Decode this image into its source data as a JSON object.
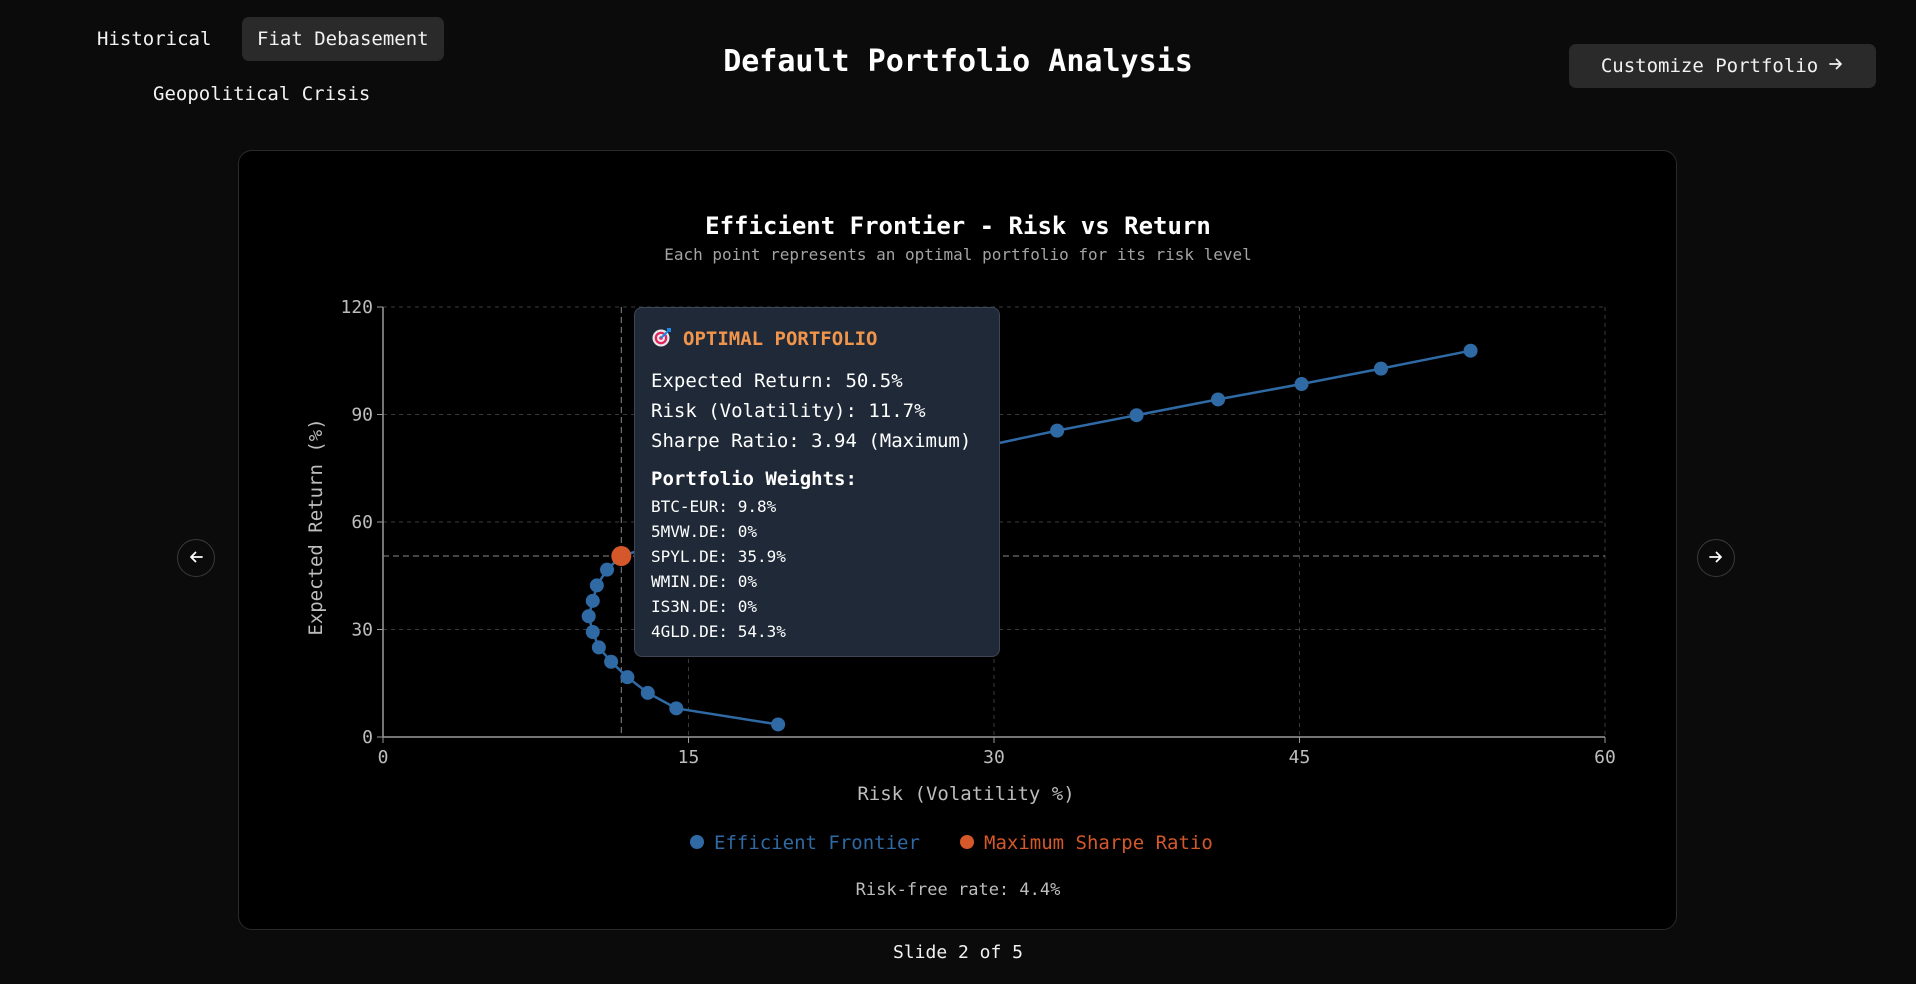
{
  "tabs": [
    {
      "label": "Historical",
      "active": false
    },
    {
      "label": "Fiat Debasement",
      "active": true
    },
    {
      "label": "Geopolitical Crisis",
      "active": false
    }
  ],
  "page_title": "Default Portfolio Analysis",
  "customize_button": {
    "label": "Customize Portfolio",
    "icon": "arrow-right-icon"
  },
  "nav": {
    "prev_icon": "arrow-left-icon",
    "next_icon": "arrow-right-icon"
  },
  "chart_data": {
    "type": "scatter",
    "title": "Efficient Frontier - Risk vs Return",
    "subtitle": "Each point represents an optimal portfolio for its risk level",
    "xlabel": "Risk (Volatility %)",
    "ylabel": "Expected Return (%)",
    "xlim": [
      0,
      60
    ],
    "ylim": [
      0,
      120
    ],
    "xticks": [
      0,
      15,
      30,
      45,
      60
    ],
    "yticks": [
      0,
      30,
      60,
      90,
      120
    ],
    "grid": true,
    "legend_position": "bottom-center",
    "series": [
      {
        "name": "Efficient Frontier",
        "color": "#2f6aa5",
        "points": [
          [
            19.4,
            3.5
          ],
          [
            14.4,
            8.0
          ],
          [
            13.0,
            12.3
          ],
          [
            12.0,
            16.7
          ],
          [
            11.2,
            21.0
          ],
          [
            10.6,
            25.0
          ],
          [
            10.3,
            29.3
          ],
          [
            10.1,
            33.7
          ],
          [
            10.3,
            38.0
          ],
          [
            10.5,
            42.3
          ],
          [
            11.0,
            46.7
          ],
          [
            11.7,
            50.5
          ],
          [
            29.8,
            81.5
          ],
          [
            33.1,
            85.5
          ],
          [
            37.0,
            89.8
          ],
          [
            41.0,
            94.2
          ],
          [
            45.1,
            98.5
          ],
          [
            49.0,
            102.8
          ],
          [
            53.4,
            107.8
          ]
        ]
      },
      {
        "name": "Maximum Sharpe Ratio",
        "color": "#d4582a",
        "points": [
          [
            11.7,
            50.5
          ]
        ]
      }
    ],
    "reference_lines": {
      "x": 11.7,
      "y": 50.5
    },
    "footer": "Risk-free rate: 4.4%"
  },
  "tooltip": {
    "icon": "target-icon",
    "title": "OPTIMAL PORTFOLIO",
    "lines": [
      "Expected Return: 50.5%",
      "Risk (Volatility): 11.7%",
      "Sharpe Ratio: 3.94 (Maximum)"
    ],
    "weights_title": "Portfolio Weights:",
    "weights": [
      "BTC-EUR: 9.8%",
      "5MVW.DE: 0%",
      "SPYL.DE: 35.9%",
      "WMIN.DE: 0%",
      "IS3N.DE: 0%",
      "4GLD.DE: 54.3%"
    ]
  },
  "slide_counter": "Slide 2 of 5"
}
